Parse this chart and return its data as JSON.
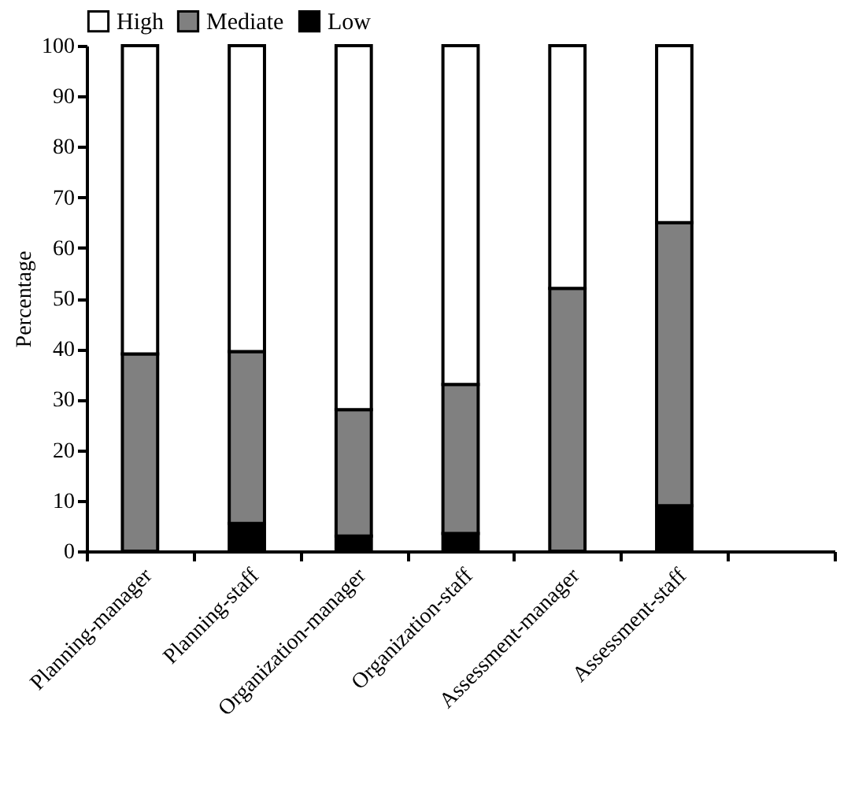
{
  "chart_data": {
    "type": "bar",
    "stacked": true,
    "ylabel": "Percentage",
    "categories": [
      "Planning-manager",
      "Planning-staff",
      "Organization-manager",
      "Organization-staff",
      "Assessment-manager",
      "Assessment-staff",
      null
    ],
    "series": [
      {
        "name": "Low",
        "color": "#000000",
        "values": [
          0,
          5.5,
          3,
          3.5,
          0,
          9,
          null
        ]
      },
      {
        "name": "Mediate",
        "color": "#808080",
        "values": [
          39,
          34,
          25,
          29.5,
          52,
          56,
          null
        ]
      },
      {
        "name": "High",
        "color": "#ffffff",
        "values": [
          61,
          60.5,
          72,
          67,
          48,
          35,
          null
        ]
      }
    ],
    "ylim": [
      0,
      100
    ],
    "yticks": [
      0,
      10,
      20,
      30,
      40,
      50,
      60,
      70,
      80,
      90,
      100
    ],
    "grid": false,
    "legend": "top left"
  }
}
